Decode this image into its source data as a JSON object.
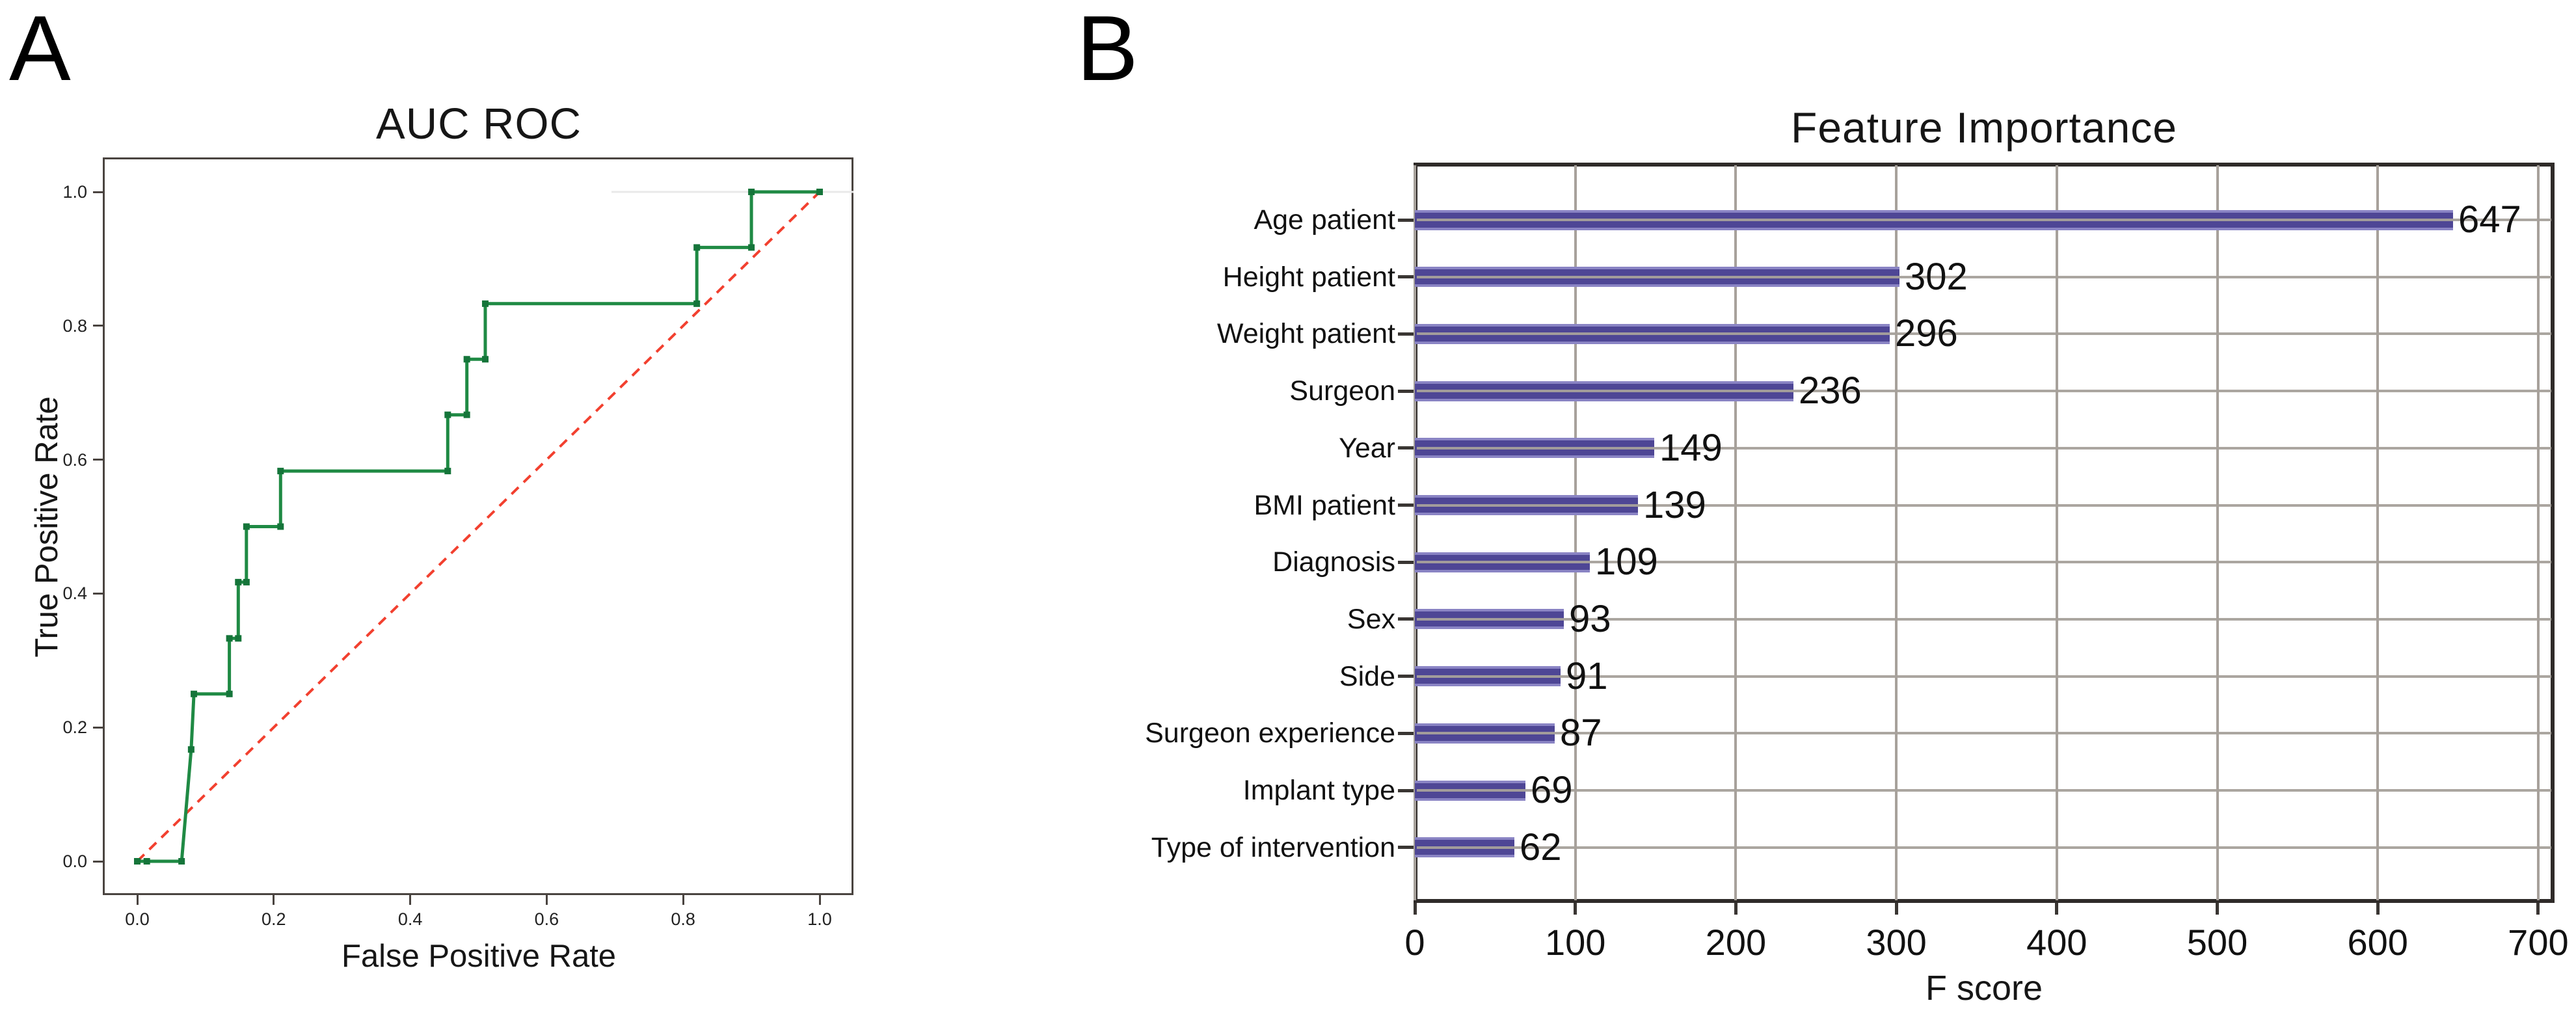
{
  "panels": [
    {
      "label": "A"
    },
    {
      "label": "B"
    }
  ],
  "chart_data": [
    {
      "type": "line",
      "panel": "A",
      "title": "AUC ROC",
      "xlabel": "False Positive Rate",
      "ylabel": "True Positive Rate",
      "xlim": [
        -0.05,
        1.05
      ],
      "ylim": [
        -0.05,
        1.05
      ],
      "xticks": [
        "0.0",
        "0.2",
        "0.4",
        "0.6",
        "0.8",
        "1.0"
      ],
      "yticks": [
        "0.0",
        "0.2",
        "0.4",
        "0.6",
        "0.8",
        "1.0"
      ],
      "grid": false,
      "legend_position": "none",
      "series": [
        {
          "name": "ROC curve",
          "style": "step",
          "color": "#1f8a44",
          "marker": "square",
          "marker_color": "#15753a",
          "points": [
            [
              0,
              0
            ],
            [
              0.014,
              0
            ],
            [
              0.065,
              0
            ],
            [
              0.079,
              0.167
            ],
            [
              0.083,
              0.25
            ],
            [
              0.135,
              0.25
            ],
            [
              0.135,
              0.333
            ],
            [
              0.148,
              0.333
            ],
            [
              0.148,
              0.417
            ],
            [
              0.16,
              0.417
            ],
            [
              0.16,
              0.5
            ],
            [
              0.21,
              0.5
            ],
            [
              0.21,
              0.583
            ],
            [
              0.455,
              0.583
            ],
            [
              0.455,
              0.667
            ],
            [
              0.483,
              0.667
            ],
            [
              0.483,
              0.75
            ],
            [
              0.51,
              0.75
            ],
            [
              0.51,
              0.833
            ],
            [
              0.82,
              0.833
            ],
            [
              0.82,
              0.917
            ],
            [
              0.9,
              0.917
            ],
            [
              0.9,
              1
            ],
            [
              1,
              1
            ]
          ]
        },
        {
          "name": "chance diagonal",
          "style": "dashed",
          "color": "#f2402f",
          "points": [
            [
              0,
              0
            ],
            [
              1,
              1
            ]
          ]
        }
      ]
    },
    {
      "type": "bar",
      "panel": "B",
      "orientation": "horizontal",
      "title": "Feature Importance",
      "xlabel": "F score",
      "categories": [
        "Age patient",
        "Height patient",
        "Weight patient",
        "Surgeon",
        "Year",
        "BMI patient",
        "Diagnosis",
        "Sex",
        "Side",
        "Surgeon experience",
        "Implant type",
        "Type of intervention"
      ],
      "values": [
        647,
        302,
        296,
        236,
        149,
        139,
        109,
        93,
        91,
        87,
        69,
        62
      ],
      "xticks": [
        0,
        100,
        200,
        300,
        400,
        500,
        600,
        700
      ],
      "xlim": [
        0,
        700
      ],
      "grid": true,
      "bar_color": "#4e4695",
      "bar_edge_color": "#8a84c4",
      "value_label_color": "#111111"
    }
  ],
  "colors": {
    "grid": "#a7a19b",
    "spine_a": "#4a4440",
    "spine_b": "#2f2b29",
    "text": "#1c1c1c",
    "tick": "#3a3633",
    "background": "#ffffff",
    "faint_top_line": "#e9e9e9"
  }
}
